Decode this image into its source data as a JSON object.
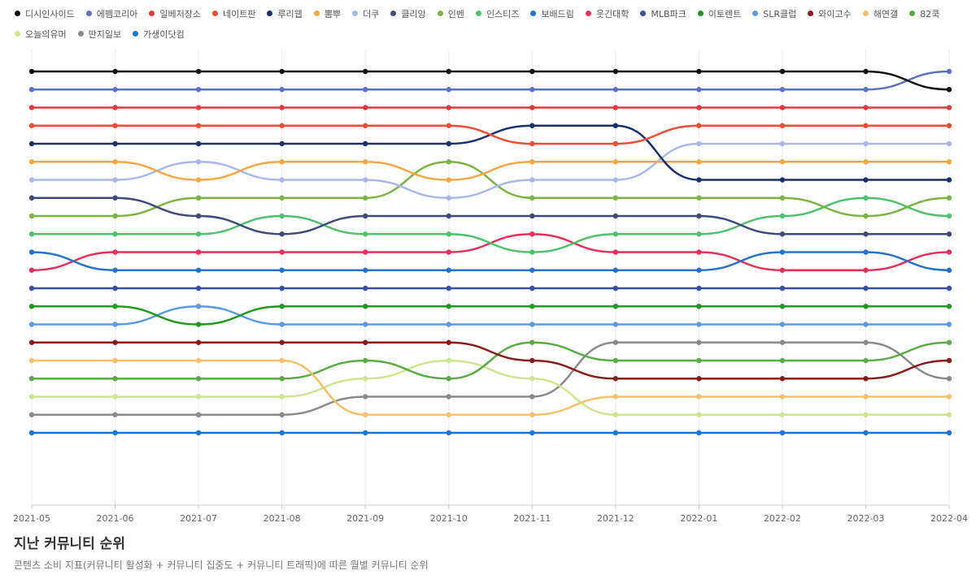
{
  "chart_data": {
    "type": "line",
    "title": "지난 커뮤니티 순위",
    "subtitle": "콘텐츠 소비 지표(커뮤니티 활성화 + 커뮤니티 집중도 + 커뮤니티 트래픽)에 따른 월별 커뮤니티 순위",
    "xlabel": "",
    "ylabel": "",
    "y_reversed": true,
    "ylim": [
      1,
      21
    ],
    "grid": false,
    "legend_position": "top",
    "categories": [
      "2021-05",
      "2021-06",
      "2021-07",
      "2021-08",
      "2021-09",
      "2021-10",
      "2021-11",
      "2021-12",
      "2022-01",
      "2022-02",
      "2022-03",
      "2022-04"
    ],
    "series": [
      {
        "name": "디시인사이드",
        "color": "#111111",
        "values": [
          1,
          1,
          1,
          1,
          1,
          1,
          1,
          1,
          1,
          1,
          1,
          2
        ]
      },
      {
        "name": "에펨코리아",
        "color": "#5b72c4",
        "values": [
          2,
          2,
          2,
          2,
          2,
          2,
          2,
          2,
          2,
          2,
          2,
          1
        ]
      },
      {
        "name": "일베저장소",
        "color": "#e03a3e",
        "values": [
          3,
          3,
          3,
          3,
          3,
          3,
          3,
          3,
          3,
          3,
          3,
          3
        ]
      },
      {
        "name": "네이트판",
        "color": "#ef4c35",
        "values": [
          4,
          4,
          4,
          4,
          4,
          4,
          5,
          5,
          4,
          4,
          4,
          4
        ]
      },
      {
        "name": "루리웹",
        "color": "#1a2f6e",
        "values": [
          5,
          5,
          5,
          5,
          5,
          5,
          4,
          4,
          7,
          7,
          7,
          7
        ]
      },
      {
        "name": "뽐뿌",
        "color": "#f5a742",
        "values": [
          6,
          6,
          7,
          6,
          6,
          7,
          6,
          6,
          6,
          6,
          6,
          6
        ]
      },
      {
        "name": "더쿠",
        "color": "#a9b8ec",
        "values": [
          7,
          7,
          6,
          7,
          7,
          8,
          7,
          7,
          5,
          5,
          5,
          5
        ]
      },
      {
        "name": "클리앙",
        "color": "#3f4a7a",
        "values": [
          8,
          8,
          9,
          10,
          9,
          9,
          9,
          9,
          9,
          10,
          10,
          10
        ]
      },
      {
        "name": "인벤",
        "color": "#7cb342",
        "values": [
          9,
          9,
          8,
          8,
          8,
          6,
          8,
          8,
          8,
          8,
          9,
          8
        ]
      },
      {
        "name": "인스티즈",
        "color": "#4cc26d",
        "values": [
          10,
          10,
          10,
          9,
          10,
          10,
          11,
          10,
          10,
          9,
          8,
          9
        ]
      },
      {
        "name": "보배드림",
        "color": "#2573c9",
        "values": [
          11,
          12,
          12,
          12,
          12,
          12,
          12,
          12,
          12,
          11,
          11,
          12
        ]
      },
      {
        "name": "웃긴대학",
        "color": "#e6305a",
        "values": [
          12,
          11,
          11,
          11,
          11,
          11,
          10,
          11,
          11,
          12,
          12,
          11
        ]
      },
      {
        "name": "MLB파크",
        "color": "#3b4f9e",
        "values": [
          13,
          13,
          13,
          13,
          13,
          13,
          13,
          13,
          13,
          13,
          13,
          13
        ]
      },
      {
        "name": "이토렌트",
        "color": "#1e9b1e",
        "values": [
          14,
          14,
          15,
          14,
          14,
          14,
          14,
          14,
          14,
          14,
          14,
          14
        ]
      },
      {
        "name": "SLR클럽",
        "color": "#5b9ae0",
        "values": [
          15,
          15,
          14,
          15,
          15,
          15,
          15,
          15,
          15,
          15,
          15,
          15
        ]
      },
      {
        "name": "와이고수",
        "color": "#8b1a1a",
        "values": [
          16,
          16,
          16,
          16,
          16,
          16,
          17,
          18,
          18,
          18,
          18,
          17
        ]
      },
      {
        "name": "해연갤",
        "color": "#f7c06b",
        "values": [
          17,
          17,
          17,
          17,
          20,
          20,
          20,
          19,
          19,
          19,
          19,
          19
        ]
      },
      {
        "name": "82쿡",
        "color": "#5aab46",
        "values": [
          18,
          18,
          18,
          18,
          17,
          18,
          16,
          17,
          17,
          17,
          17,
          16
        ]
      },
      {
        "name": "오늘의유머",
        "color": "#cce68f",
        "values": [
          19,
          19,
          19,
          19,
          18,
          17,
          18,
          20,
          20,
          20,
          20,
          20
        ]
      },
      {
        "name": "딴지일보",
        "color": "#8a8a8a",
        "values": [
          20,
          20,
          20,
          20,
          19,
          19,
          19,
          16,
          16,
          16,
          16,
          18
        ]
      },
      {
        "name": "가생이닷컴",
        "color": "#1976d2",
        "values": [
          21,
          21,
          21,
          21,
          21,
          21,
          21,
          21,
          21,
          21,
          21,
          21
        ]
      }
    ]
  }
}
